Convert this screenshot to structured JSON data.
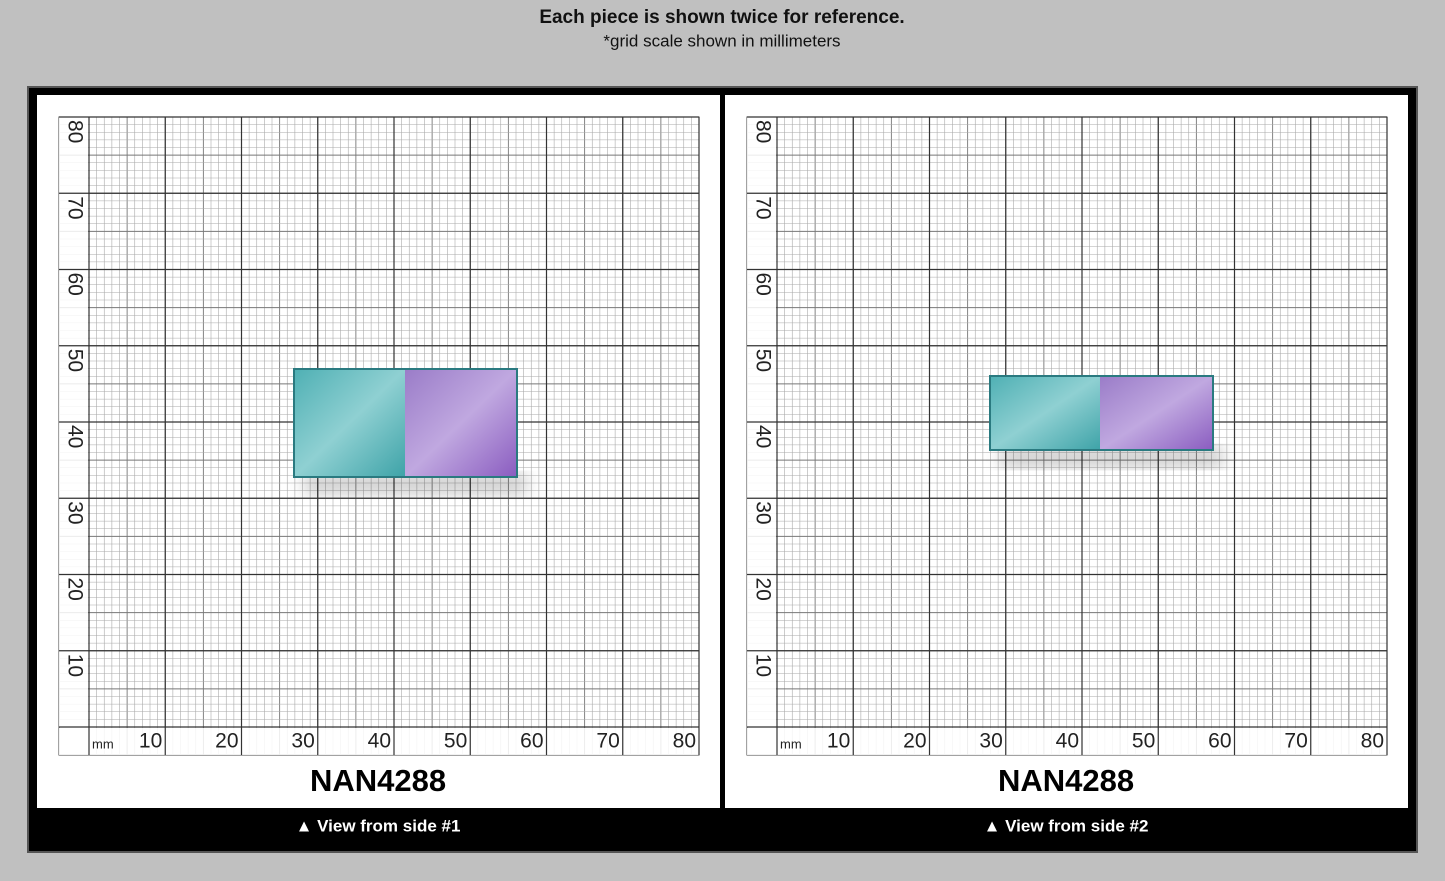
{
  "header": {
    "title": "Each piece is shown twice for reference.",
    "subtitle": "*grid scale shown in millimeters"
  },
  "panels": [
    {
      "x_scale": [
        10,
        20,
        30,
        40,
        50,
        60,
        70,
        80
      ],
      "y_scale": [
        10,
        20,
        30,
        40,
        50,
        60,
        70,
        80
      ],
      "unit": "mm",
      "label": "NAN4288",
      "caption": "▲ View from side #1"
    },
    {
      "x_scale": [
        10,
        20,
        30,
        40,
        50,
        60,
        70,
        80
      ],
      "y_scale": [
        10,
        20,
        30,
        40,
        50,
        60,
        70,
        80
      ],
      "unit": "mm",
      "label": "NAN4288",
      "caption": "▲ View from side #2"
    }
  ]
}
